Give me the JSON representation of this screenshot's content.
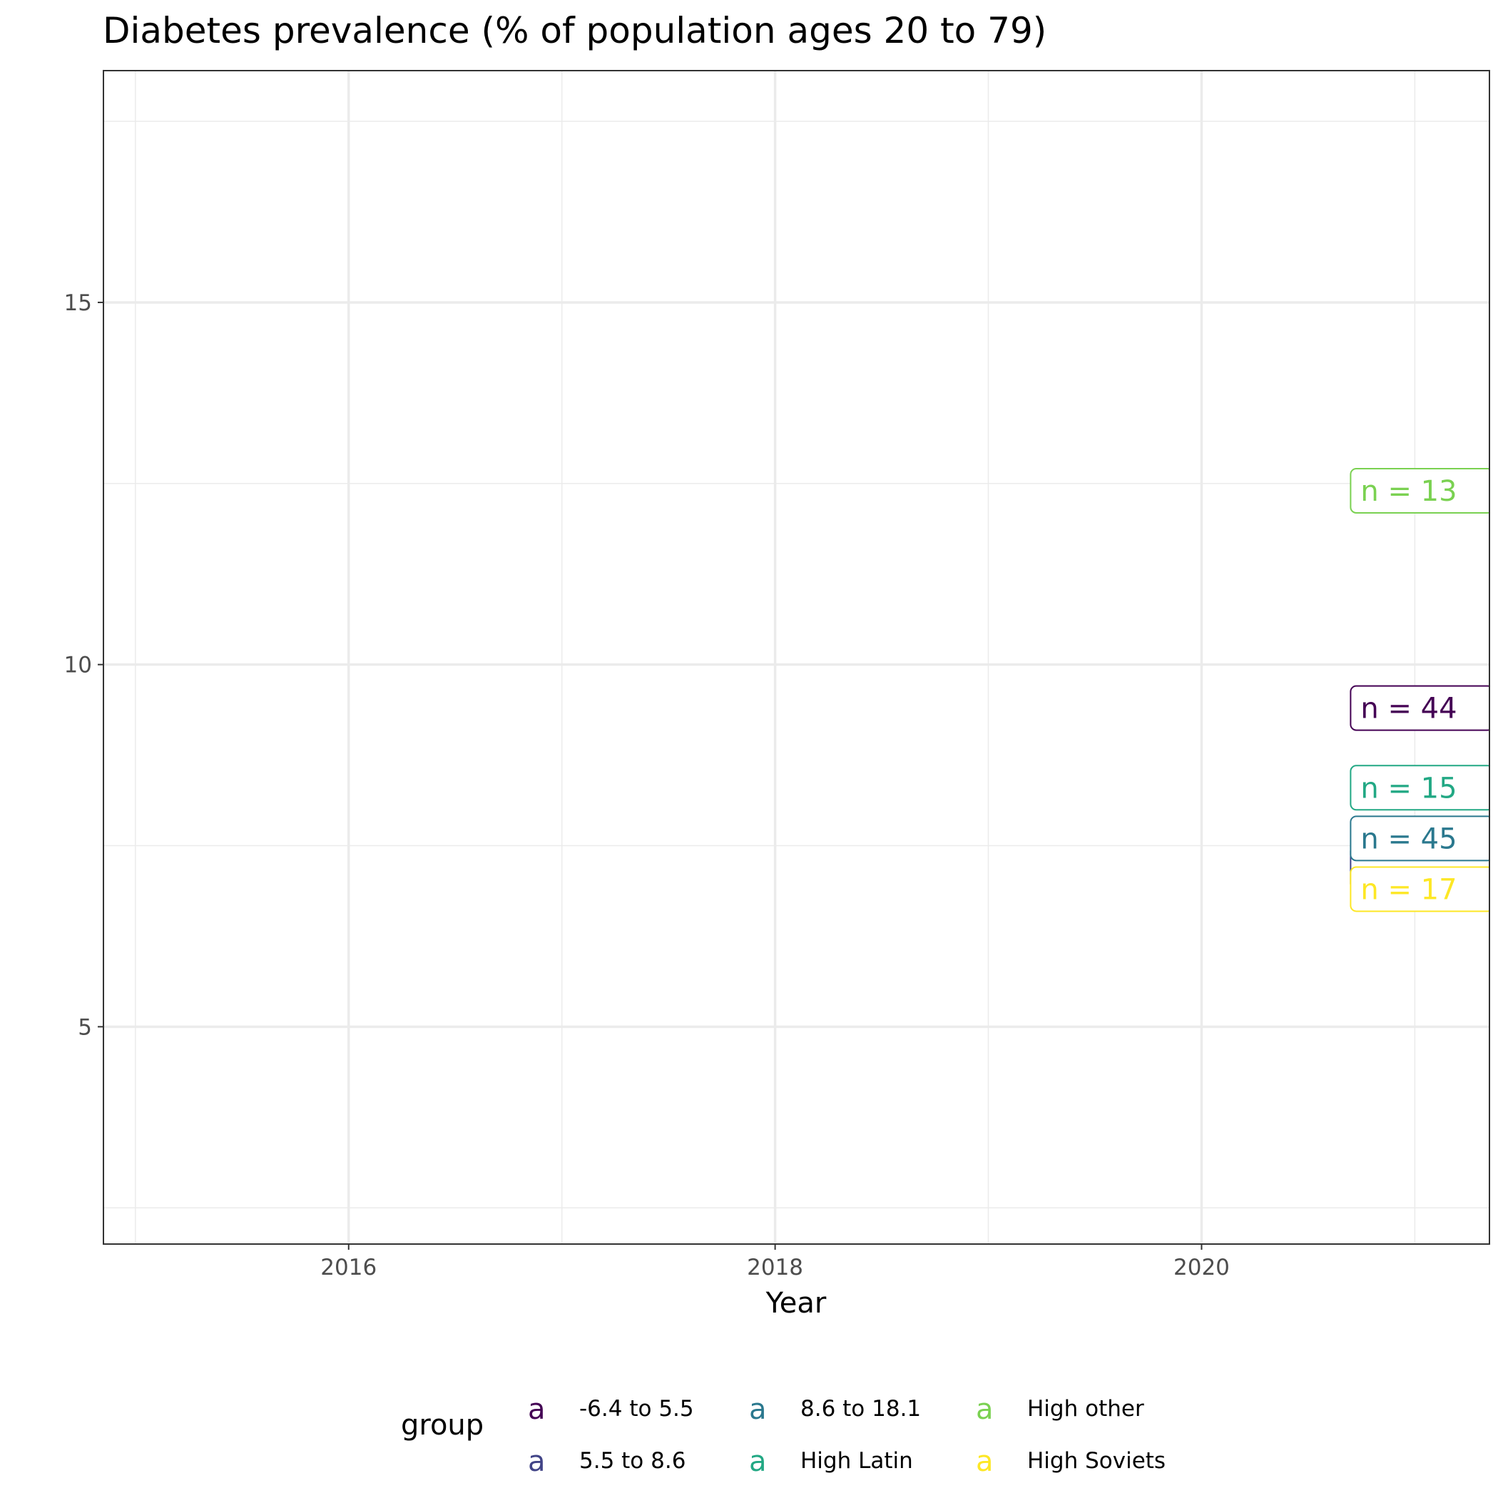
{
  "chart_data": {
    "type": "line",
    "title": "Diabetes prevalence (% of population ages 20 to 79)",
    "xlabel": "Year",
    "ylabel": "",
    "xlim": [
      2014.85,
      2021.35
    ],
    "ylim": [
      2.0,
      18.2
    ],
    "x_ticks": [
      2016,
      2018,
      2020
    ],
    "y_ticks": [
      5,
      10,
      15
    ],
    "x_minor": [
      2015,
      2017,
      2019,
      2021
    ],
    "y_minor": [
      2.5,
      7.5,
      12.5,
      17.5
    ],
    "grid": true,
    "legend": {
      "title": "group",
      "position": "bottom",
      "key_glyph": "a"
    },
    "series": [
      {
        "name": "-6.4 to 5.5",
        "color": "#440154",
        "x": [
          2021
        ],
        "y": [
          9.4
        ],
        "label": "n = 44"
      },
      {
        "name": "5.5 to 8.6",
        "color": "#414487",
        "x": [
          2021
        ],
        "y": [
          7.2
        ],
        "label": ""
      },
      {
        "name": "8.6 to 18.1",
        "color": "#2A788E",
        "x": [
          2021
        ],
        "y": [
          7.6
        ],
        "label": "n = 45"
      },
      {
        "name": "High Latin",
        "color": "#22A884",
        "x": [
          2021
        ],
        "y": [
          8.3
        ],
        "label": "n = 15"
      },
      {
        "name": "High other",
        "color": "#7AD151",
        "x": [
          2021
        ],
        "y": [
          12.4
        ],
        "label": "n = 13"
      },
      {
        "name": "High Soviets",
        "color": "#FDE725",
        "x": [
          2021
        ],
        "y": [
          6.9
        ],
        "label": "n = 17"
      }
    ]
  }
}
